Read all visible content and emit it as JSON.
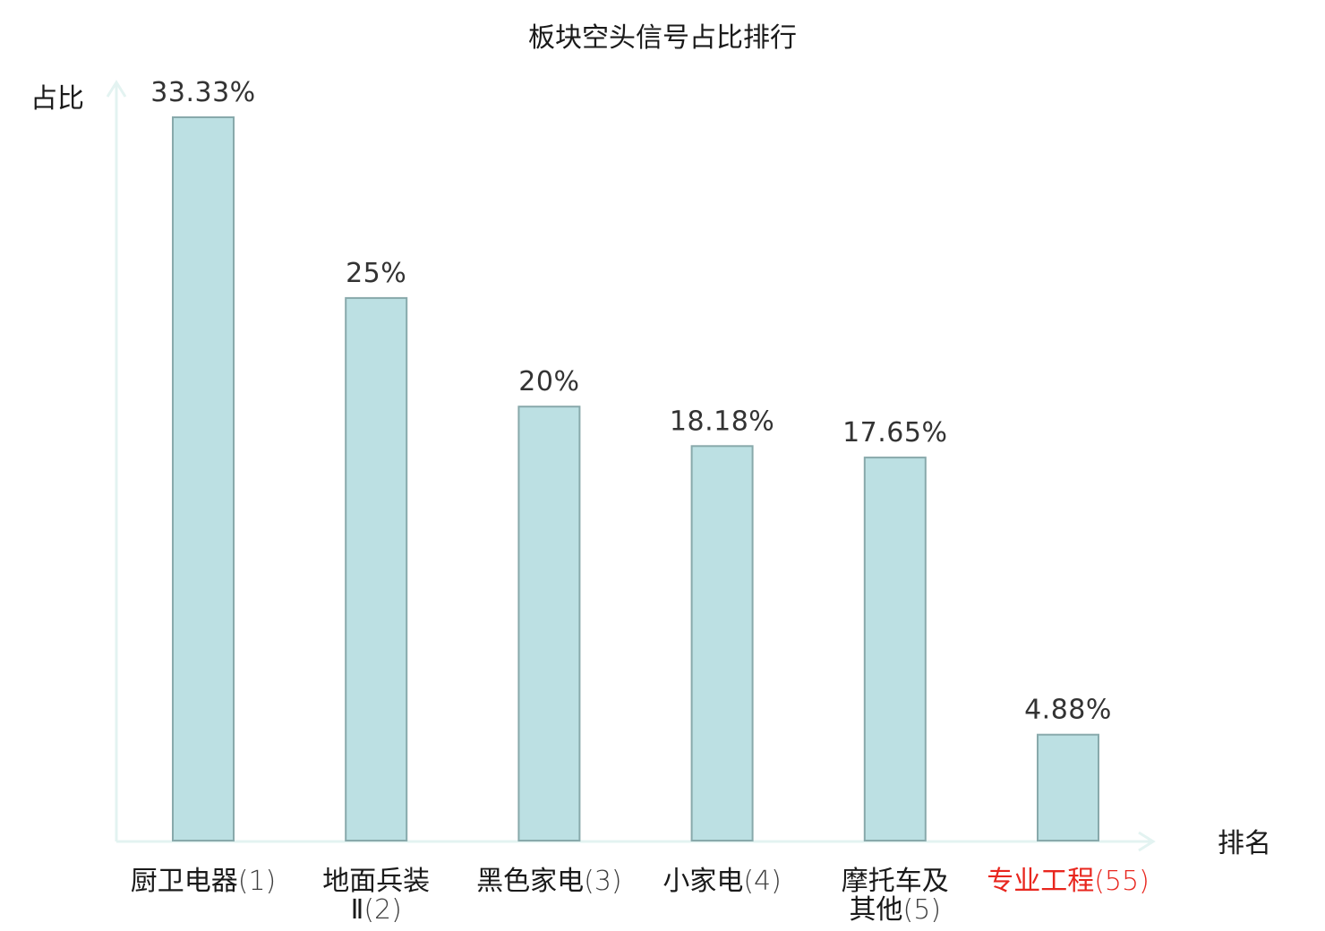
{
  "chart_data": {
    "type": "bar",
    "title": "板块空头信号占比排行",
    "ylabel": "占比",
    "xlabel": "排名",
    "ylim": [
      0,
      35
    ],
    "grid": false,
    "colors": {
      "bar_fill": "#bce0e3",
      "bar_stroke": "#88a9ab",
      "axis": "#e3f3f1",
      "text": "#1a1a1a",
      "highlight": "#e8261e"
    },
    "categories": [
      {
        "name_lines": [
          "厨卫电器"
        ],
        "rank": "(1)",
        "highlight": false
      },
      {
        "name_lines": [
          "地面兵装",
          "Ⅱ"
        ],
        "rank": "(2)",
        "highlight": false
      },
      {
        "name_lines": [
          "黑色家电"
        ],
        "rank": "(3)",
        "highlight": false
      },
      {
        "name_lines": [
          "小家电"
        ],
        "rank": "(4)",
        "highlight": false
      },
      {
        "name_lines": [
          "摩托车及",
          "其他"
        ],
        "rank": "(5)",
        "highlight": false
      },
      {
        "name_lines": [
          "专业工程"
        ],
        "rank": "(55)",
        "highlight": true
      }
    ],
    "values": [
      33.33,
      25,
      20,
      18.18,
      17.65,
      4.88
    ],
    "value_labels": [
      "33.33%",
      "25%",
      "20%",
      "18.18%",
      "17.65%",
      "4.88%"
    ]
  }
}
